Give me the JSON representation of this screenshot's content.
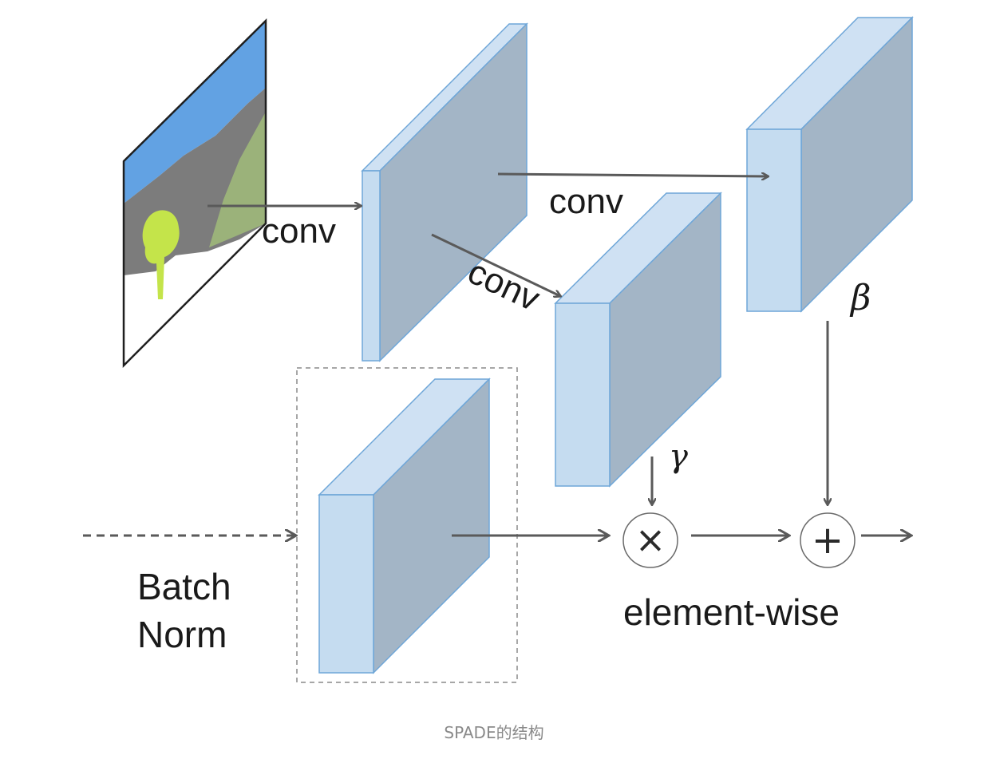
{
  "labels": {
    "conv_1": "conv",
    "conv_2": "conv",
    "conv_3": "conv",
    "gamma": "γ",
    "beta": "β",
    "batch_norm_line1": "Batch",
    "batch_norm_line2": "Norm",
    "element_wise": "element-wise"
  },
  "operators": {
    "multiply": "×",
    "add": "+"
  },
  "caption": "SPADE的结构",
  "colors": {
    "block_front": "#c5dcf0",
    "block_top": "#cfe1f3",
    "block_side": "#a3b5c6",
    "block_edge": "#6ea6d8",
    "arrow": "#5a5a5a",
    "sky": "#62a2e3",
    "mountain": "#7c7c7c",
    "grass": "#9bb27a",
    "tree": "#c4e44a",
    "caption": "#8a8a8a"
  }
}
